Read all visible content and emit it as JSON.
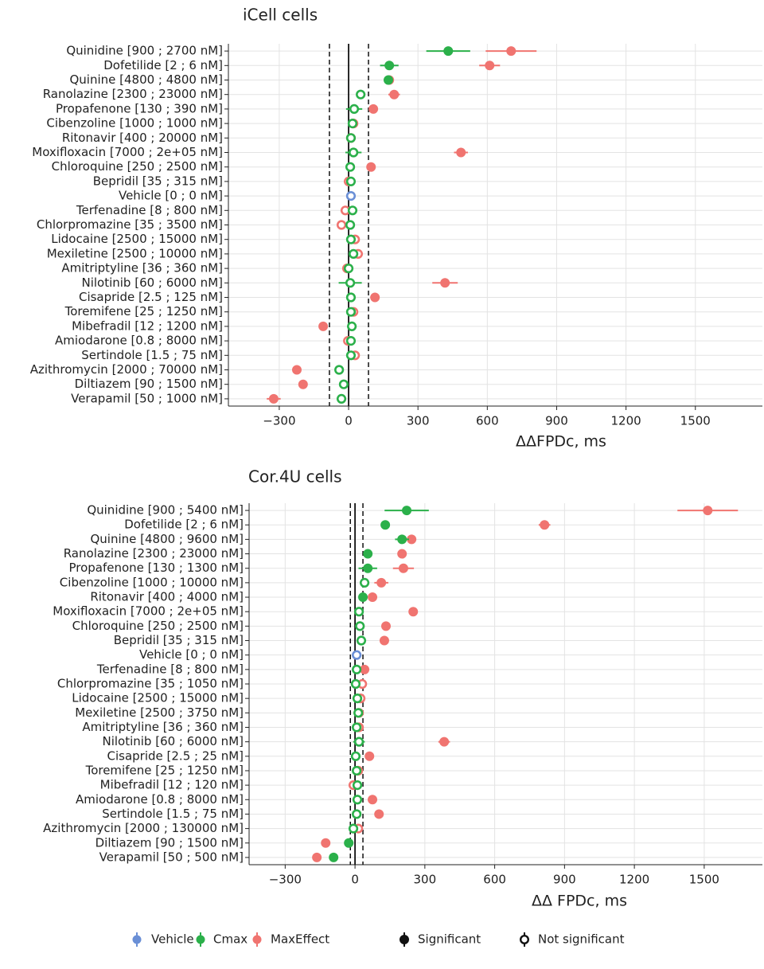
{
  "chart_data": [
    {
      "type": "forest",
      "title": "iCell cells",
      "x_label": "ΔΔFPDc, ms",
      "xlim": [
        -520,
        1790
      ],
      "xticks": [
        {
          "value": -300,
          "label": "−300"
        },
        0,
        300,
        600,
        900,
        1200,
        1500
      ],
      "vlines": [
        -83,
        86
      ],
      "zero_line": 0,
      "grid": true,
      "categories": [
        "Quinidine [900 ; 2700 nM]",
        "Dofetilide [2 ; 6 nM]",
        "Quinine [4800 ; 4800 nM]",
        "Ranolazine [2300 ; 23000 nM]",
        "Propafenone [130 ; 390 nM]",
        "Cibenzoline [1000 ; 1000 nM]",
        "Ritonavir [400 ; 20000 nM]",
        "Moxifloxacin [7000 ; 2e+05 nM]",
        "Chloroquine [250 ; 2500 nM]",
        "Bepridil [35 ; 315 nM]",
        "Vehicle [0 ; 0 nM]",
        "Terfenadine [8 ; 800 nM]",
        "Chlorpromazine [35 ; 3500 nM]",
        "Lidocaine [2500 ; 15000 nM]",
        "Mexiletine [2500 ; 10000 nM]",
        "Amitriptyline [36 ; 360 nM]",
        "Nilotinib [60 ; 6000 nM]",
        "Cisapride [2.5 ; 125 nM]",
        "Toremifene [25 ; 1250 nM]",
        "Mibefradil [12 ; 1200 nM]",
        "Amiodarone [0.8 ; 8000 nM]",
        "Sertindole [1.5 ; 75 nM]",
        "Azithromycin [2000 ; 70000 nM]",
        "Diltiazem [90 ; 1500 nM]",
        "Verapamil [50 ; 1000 nM]"
      ],
      "series": [
        {
          "name": "Vehicle",
          "color": "#6a8fd6",
          "values": [
            null,
            null,
            null,
            null,
            null,
            null,
            null,
            null,
            null,
            null,
            10,
            null,
            null,
            null,
            null,
            null,
            null,
            null,
            null,
            null,
            null,
            null,
            null,
            null,
            null
          ],
          "errors": [
            null,
            null,
            null,
            null,
            null,
            null,
            null,
            null,
            null,
            null,
            8,
            null,
            null,
            null,
            null,
            null,
            null,
            null,
            null,
            null,
            null,
            null,
            null,
            null,
            null
          ],
          "significant": [
            null,
            null,
            null,
            null,
            null,
            null,
            null,
            null,
            null,
            null,
            false,
            null,
            null,
            null,
            null,
            null,
            null,
            null,
            null,
            null,
            null,
            null,
            null,
            null,
            null
          ]
        },
        {
          "name": "Cmax",
          "color": "#2bb04a",
          "values": [
            431,
            176,
            172,
            52,
            24,
            17,
            10,
            21,
            7,
            10,
            null,
            17,
            7,
            10,
            21,
            0,
            7,
            10,
            10,
            14,
            10,
            10,
            -41,
            -21,
            -31
          ],
          "errors": [
            95,
            40,
            10,
            15,
            35,
            8,
            8,
            35,
            8,
            8,
            null,
            8,
            8,
            8,
            8,
            8,
            50,
            8,
            8,
            8,
            8,
            8,
            8,
            8,
            15
          ],
          "significant": [
            true,
            true,
            true,
            false,
            false,
            false,
            false,
            false,
            false,
            false,
            null,
            false,
            false,
            false,
            false,
            false,
            false,
            false,
            false,
            false,
            false,
            false,
            false,
            false,
            false
          ]
        },
        {
          "name": "MaxEffect",
          "color": "#f07470",
          "values": [
            703,
            610,
            176,
            197,
            107,
            21,
            10,
            486,
            97,
            0,
            null,
            -14,
            -31,
            28,
            41,
            -7,
            417,
            114,
            21,
            -110,
            -3,
            28,
            -224,
            -197,
            -324
          ],
          "errors": [
            110,
            45,
            8,
            25,
            15,
            8,
            8,
            30,
            8,
            8,
            null,
            8,
            8,
            8,
            8,
            8,
            55,
            8,
            8,
            8,
            8,
            8,
            8,
            8,
            30
          ],
          "significant": [
            true,
            true,
            true,
            true,
            true,
            false,
            false,
            true,
            true,
            false,
            null,
            false,
            false,
            false,
            false,
            false,
            true,
            true,
            false,
            true,
            false,
            false,
            true,
            true,
            true
          ]
        }
      ]
    },
    {
      "type": "forest",
      "title": "Cor.4U cells",
      "x_label": "ΔΔ FPDc, ms",
      "xlim": [
        -455,
        1750
      ],
      "xticks": [
        {
          "value": -300,
          "label": "−300"
        },
        0,
        300,
        600,
        900,
        1200,
        1500
      ],
      "vlines": [
        -20,
        34
      ],
      "zero_line": 0,
      "grid": true,
      "categories": [
        "Quinidine [900 ; 5400 nM]",
        "Dofetilide [2 ; 6 nM]",
        "Quinine [4800 ; 9600 nM]",
        "Ranolazine [2300 ; 23000 nM]",
        "Propafenone [130 ; 1300 nM]",
        "Cibenzoline [1000 ; 10000 nM]",
        "Ritonavir [400 ; 4000 nM]",
        "Moxifloxacin [7000 ; 2e+05 nM]",
        "Chloroquine [250 ; 2500 nM]",
        "Bepridil [35 ; 315 nM]",
        "Vehicle [0 ; 0 nM]",
        "Terfenadine [8 ; 800 nM]",
        "Chlorpromazine [35 ; 1050 nM]",
        "Lidocaine [2500 ; 15000 nM]",
        "Mexiletine [2500 ; 3750 nM]",
        "Amitriptyline [36 ; 360 nM]",
        "Nilotinib [60 ; 6000 nM]",
        "Cisapride [2.5 ; 25 nM]",
        "Toremifene [25 ; 1250 nM]",
        "Mibefradil [12 ; 120 nM]",
        "Amiodarone [0.8 ; 8000 nM]",
        "Sertindole [1.5 ; 75 nM]",
        "Azithromycin [2000 ; 130000 nM]",
        "Diltiazem [90 ; 1500 nM]",
        "Verapamil [50 ; 500 nM]"
      ],
      "series": [
        {
          "name": "Vehicle",
          "color": "#6a8fd6",
          "values": [
            null,
            null,
            null,
            null,
            null,
            null,
            null,
            null,
            null,
            null,
            7,
            null,
            null,
            null,
            null,
            null,
            null,
            null,
            null,
            null,
            null,
            null,
            null,
            null,
            null
          ],
          "errors": [
            null,
            null,
            null,
            null,
            null,
            null,
            null,
            null,
            null,
            null,
            8,
            null,
            null,
            null,
            null,
            null,
            null,
            null,
            null,
            null,
            null,
            null,
            null,
            null,
            null
          ],
          "significant": [
            null,
            null,
            null,
            null,
            null,
            null,
            null,
            null,
            null,
            null,
            false,
            null,
            null,
            null,
            null,
            null,
            null,
            null,
            null,
            null,
            null,
            null,
            null,
            null,
            null
          ]
        },
        {
          "name": "Cmax",
          "color": "#2bb04a",
          "values": [
            222,
            130,
            202,
            55,
            55,
            41,
            34,
            17,
            21,
            27,
            null,
            7,
            3,
            10,
            14,
            7,
            17,
            3,
            7,
            10,
            10,
            7,
            -7,
            -27,
            -92
          ],
          "errors": [
            95,
            12,
            30,
            8,
            40,
            10,
            8,
            8,
            8,
            8,
            null,
            8,
            8,
            8,
            8,
            8,
            25,
            8,
            8,
            8,
            8,
            8,
            8,
            8,
            8
          ],
          "significant": [
            true,
            true,
            true,
            true,
            true,
            false,
            true,
            false,
            false,
            false,
            null,
            false,
            false,
            false,
            false,
            false,
            false,
            false,
            false,
            false,
            false,
            false,
            false,
            true,
            true
          ]
        },
        {
          "name": "MaxEffect",
          "color": "#f07470",
          "values": [
            1515,
            814,
            243,
            202,
            208,
            113,
            75,
            250,
            133,
            126,
            null,
            41,
            31,
            24,
            17,
            17,
            383,
            62,
            14,
            -7,
            75,
            103,
            14,
            -126,
            -164
          ],
          "errors": [
            130,
            25,
            20,
            8,
            45,
            30,
            8,
            8,
            8,
            8,
            null,
            8,
            8,
            8,
            8,
            8,
            25,
            8,
            8,
            8,
            8,
            8,
            8,
            8,
            8
          ],
          "significant": [
            true,
            true,
            true,
            true,
            true,
            true,
            true,
            true,
            true,
            true,
            null,
            true,
            false,
            false,
            false,
            false,
            true,
            true,
            false,
            false,
            true,
            true,
            false,
            true,
            true
          ]
        }
      ]
    }
  ],
  "significance_legend": [
    "Significant",
    "Not significant"
  ]
}
